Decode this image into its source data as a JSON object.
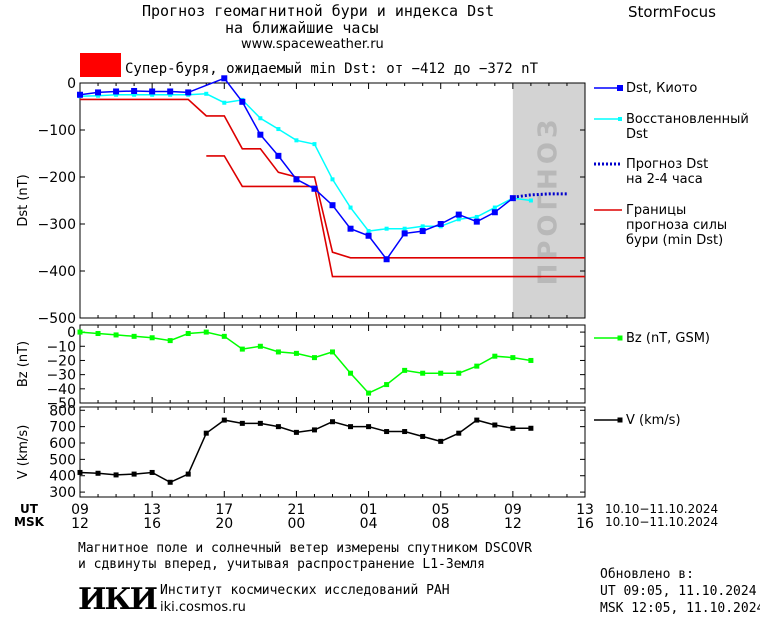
{
  "header": {
    "title_line1": "Прогноз геомагнитной бури и индекса Dst",
    "title_line2": "на ближайшие часы",
    "url": "www.spaceweather.ru",
    "brand": "StormFocus"
  },
  "storm_banner": {
    "text": "Супер-буря, ожидаемый min Dst: от −412 до −372 nT",
    "color": "#ff0000"
  },
  "forecast_label": "ПРОГНОЗ",
  "time_axis": {
    "ut_label": "UT",
    "msk_label": "MSK",
    "ut_ticks": [
      "09",
      "13",
      "17",
      "21",
      "01",
      "05",
      "09",
      "13"
    ],
    "msk_ticks": [
      "12",
      "16",
      "20",
      "00",
      "04",
      "08",
      "12",
      "16"
    ],
    "date_range_ut": "10.10−11.10.2024",
    "date_range_msk": "10.10−11.10.2024"
  },
  "footer": {
    "note_line1": "Магнитное поле и солнечный ветер измерены спутником DSCOVR",
    "note_line2": "и сдвинуты вперед, учитывая распространение L1-Земля",
    "logo": "ИКИ",
    "institute": "Институт космических исследований РАН",
    "site": "iki.cosmos.ru",
    "updated_label": "Обновлено в:",
    "updated_ut": "UT  09:05, 11.10.2024",
    "updated_msk": "MSK 12:05, 11.10.2024"
  },
  "colors": {
    "dst": "#0000ff",
    "restored": "#00ffff",
    "forecast": "#0000cc",
    "bounds": "#dd0000",
    "bz": "#00ff00",
    "speed": "#000000",
    "forecast_zone": "#d3d3d3"
  },
  "chart_data": [
    {
      "type": "line",
      "ylabel": "Dst (nT)",
      "ylim": [
        -500,
        0
      ],
      "yticks": [
        "0",
        "−100",
        "−200",
        "−300",
        "−400",
        "−500"
      ],
      "xlim": [
        9,
        37
      ],
      "forecast_start": 33,
      "series": [
        {
          "name": "Dst, Киото",
          "legend": [
            "Dst, Киото"
          ],
          "x": [
            9,
            10,
            11,
            12,
            13,
            14,
            15,
            17,
            18,
            19,
            20,
            21,
            22,
            23,
            24,
            25,
            26,
            27,
            28,
            29,
            30,
            31,
            32,
            33
          ],
          "y": [
            -25,
            -20,
            -18,
            -17,
            -18,
            -18,
            -20,
            10,
            -40,
            -110,
            -155,
            -205,
            -225,
            -260,
            -310,
            -325,
            -375,
            -320,
            -315,
            -300,
            -280,
            -295,
            -275,
            -245
          ]
        },
        {
          "name": "Восстановленный Dst",
          "legend": [
            "Восстановленный",
            "Dst"
          ],
          "x": [
            9,
            10,
            11,
            12,
            13,
            14,
            15,
            16,
            17,
            18,
            19,
            20,
            21,
            22,
            23,
            24,
            25,
            26,
            27,
            28,
            29,
            30,
            31,
            32,
            33,
            34
          ],
          "y": [
            -28,
            -27,
            -25,
            -25,
            -25,
            -25,
            -25,
            -23,
            -42,
            -36,
            -75,
            -98,
            -122,
            -130,
            -205,
            -265,
            -315,
            -310,
            -310,
            -305,
            -305,
            -290,
            -285,
            -265,
            -245,
            -250
          ]
        },
        {
          "name": "Прогноз Dst на 2-4 часа",
          "legend": [
            "Прогноз Dst",
            "на 2-4 часа"
          ],
          "x": [
            33,
            34,
            35,
            36
          ],
          "y": [
            -243,
            -238,
            -236,
            -236
          ]
        },
        {
          "name": "Границы прогноза силы бури (min Dst)",
          "legend": [
            "Границы",
            "прогноза силы",
            "бури (min Dst)"
          ],
          "segments": [
            {
              "x": [
                9,
                15,
                16,
                17,
                18,
                19,
                20,
                21,
                22,
                23,
                24,
                37
              ],
              "y": [
                -35,
                -35,
                -70,
                -70,
                -140,
                -140,
                -190,
                -200,
                -200,
                -360,
                -372,
                -372
              ]
            },
            {
              "x": [
                16,
                17,
                18,
                19,
                20,
                21,
                22,
                23,
                24,
                37
              ],
              "y": [
                -155,
                -155,
                -220,
                -220,
                -220,
                -220,
                -220,
                -412,
                -412,
                -412
              ]
            }
          ]
        }
      ]
    },
    {
      "type": "line",
      "ylabel": "Bz (nT)",
      "ylim": [
        -50,
        5
      ],
      "yticks": [
        "0",
        "−10",
        "−20",
        "−30",
        "−40",
        "−50"
      ],
      "series": [
        {
          "name": "Bz (nT, GSM)",
          "x": [
            9,
            10,
            11,
            12,
            13,
            14,
            15,
            16,
            17,
            18,
            19,
            20,
            21,
            22,
            23,
            24,
            25,
            26,
            27,
            28,
            29,
            30,
            31,
            32,
            33,
            34
          ],
          "y": [
            0,
            -1,
            -2,
            -3,
            -4,
            -6,
            -1,
            0,
            -3,
            -12,
            -10,
            -14,
            -15,
            -18,
            -14,
            -29,
            -43,
            -37,
            -27,
            -29,
            -29,
            -29,
            -24,
            -17,
            -18,
            -20
          ]
        }
      ]
    },
    {
      "type": "line",
      "ylabel": "V (km/s)",
      "ylim": [
        270,
        820
      ],
      "yticks": [
        "800",
        "700",
        "600",
        "500",
        "400",
        "300"
      ],
      "series": [
        {
          "name": "V (km/s)",
          "x": [
            9,
            10,
            11,
            12,
            13,
            14,
            15,
            16,
            17,
            18,
            19,
            20,
            21,
            22,
            23,
            24,
            25,
            26,
            27,
            28,
            29,
            30,
            31,
            32,
            33,
            34
          ],
          "y": [
            420,
            415,
            405,
            410,
            420,
            360,
            410,
            660,
            740,
            720,
            720,
            700,
            665,
            680,
            730,
            700,
            700,
            670,
            670,
            640,
            610,
            660,
            740,
            710,
            690,
            690
          ]
        }
      ]
    }
  ]
}
